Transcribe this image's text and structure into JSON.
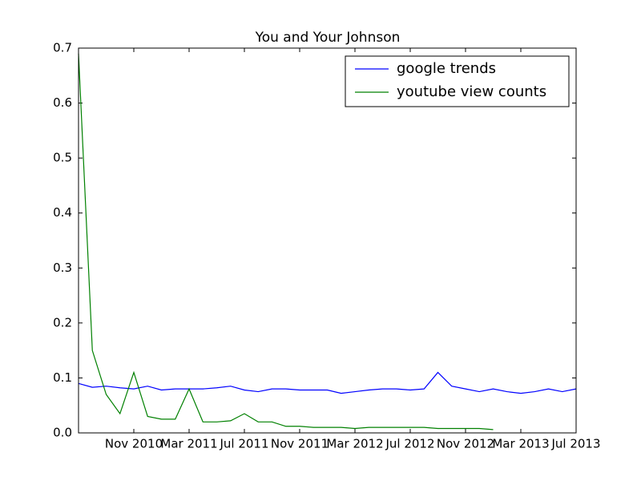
{
  "chart_data": {
    "type": "line",
    "title": "You and Your Johnson",
    "x": [
      "2010-07",
      "2010-08",
      "2010-09",
      "2010-10",
      "2010-11",
      "2010-12",
      "2011-01",
      "2011-02",
      "2011-03",
      "2011-04",
      "2011-05",
      "2011-06",
      "2011-07",
      "2011-08",
      "2011-09",
      "2011-10",
      "2011-11",
      "2011-12",
      "2012-01",
      "2012-02",
      "2012-03",
      "2012-04",
      "2012-05",
      "2012-06",
      "2012-07",
      "2012-08",
      "2012-09",
      "2012-10",
      "2012-11",
      "2012-12",
      "2013-01",
      "2013-02",
      "2013-03",
      "2013-04",
      "2013-05",
      "2013-06",
      "2013-07"
    ],
    "series": [
      {
        "name": "google trends",
        "color": "#0000ff",
        "values": [
          0.09,
          0.083,
          0.085,
          0.082,
          0.08,
          0.085,
          0.078,
          0.08,
          0.08,
          0.08,
          0.082,
          0.085,
          0.078,
          0.075,
          0.08,
          0.08,
          0.078,
          0.078,
          0.078,
          0.072,
          0.075,
          0.078,
          0.08,
          0.08,
          0.078,
          0.08,
          0.11,
          0.085,
          0.08,
          0.075,
          0.08,
          0.075,
          0.072,
          0.075,
          0.08,
          0.075,
          0.08
        ]
      },
      {
        "name": "youtube view counts",
        "color": "#008000",
        "values": [
          0.69,
          0.15,
          0.07,
          0.035,
          0.11,
          0.03,
          0.025,
          0.025,
          0.08,
          0.02,
          0.02,
          0.022,
          0.035,
          0.02,
          0.02,
          0.012,
          0.012,
          0.01,
          0.01,
          0.01,
          0.008,
          0.01,
          0.01,
          0.01,
          0.01,
          0.01,
          0.008,
          0.008,
          0.008,
          0.008,
          0.006,
          null,
          null,
          null,
          null,
          null,
          null
        ]
      }
    ],
    "xlim": [
      "2010-07",
      "2013-07"
    ],
    "xticks": [
      {
        "value": "2010-11",
        "label": "Nov 2010"
      },
      {
        "value": "2011-03",
        "label": "Mar 2011"
      },
      {
        "value": "2011-07",
        "label": "Jul 2011"
      },
      {
        "value": "2011-11",
        "label": "Nov 2011"
      },
      {
        "value": "2012-03",
        "label": "Mar 2012"
      },
      {
        "value": "2012-07",
        "label": "Jul 2012"
      },
      {
        "value": "2012-11",
        "label": "Nov 2012"
      },
      {
        "value": "2013-03",
        "label": "Mar 2013"
      },
      {
        "value": "2013-07",
        "label": "Jul 2013"
      }
    ],
    "ylim": [
      0,
      0.7
    ],
    "yticks": [
      {
        "value": 0,
        "label": "0.0"
      },
      0.1,
      0.2,
      0.3,
      0.4,
      0.5,
      0.6,
      0.7
    ],
    "legend": "upper right"
  }
}
